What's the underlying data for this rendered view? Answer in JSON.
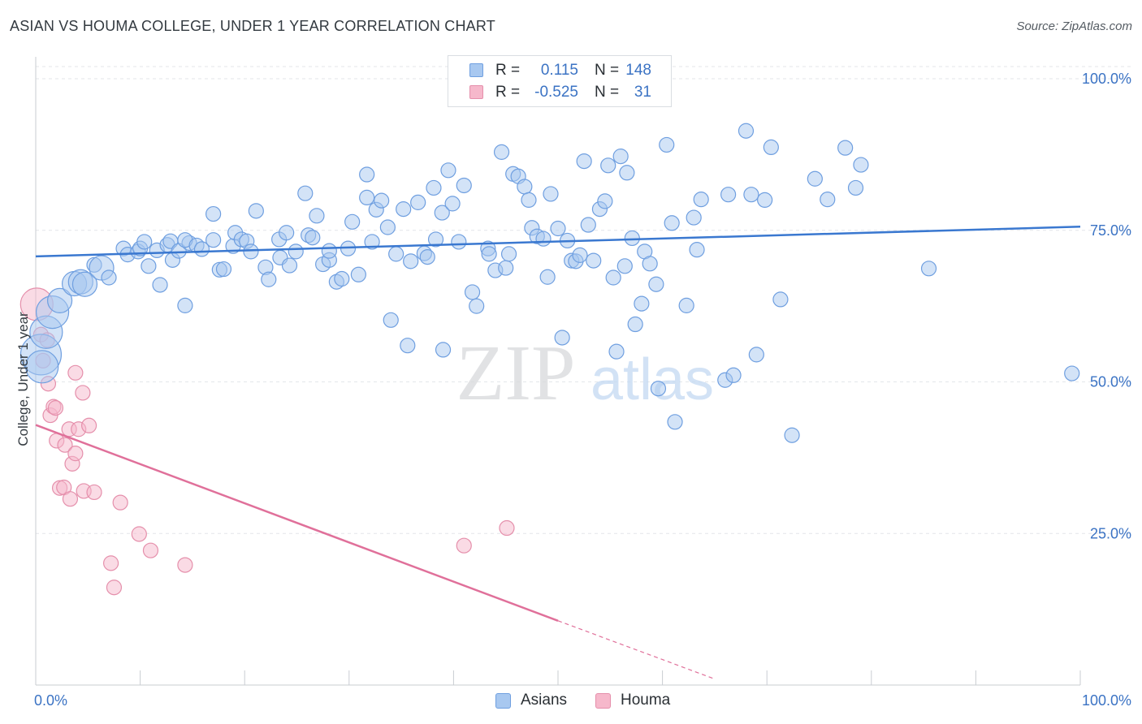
{
  "header": {
    "title": "ASIAN VS HOUMA COLLEGE, UNDER 1 YEAR CORRELATION CHART",
    "source": "Source: ZipAtlas.com"
  },
  "watermark": {
    "zip": "ZIP",
    "atlas": "atlas"
  },
  "legend": {
    "rows": [
      {
        "r_label": "R =",
        "r_value": "0.115",
        "n_label": "N =",
        "n_value": "148",
        "color": "#a8c8f0",
        "stroke": "#6f9fe0"
      },
      {
        "r_label": "R =",
        "r_value": "-0.525",
        "n_label": "N =",
        "n_value": "31",
        "color": "#f6b8cb",
        "stroke": "#e58fab"
      }
    ]
  },
  "bottom_legend": {
    "items": [
      {
        "label": "Asians",
        "color": "#a8c8f0",
        "stroke": "#6f9fe0"
      },
      {
        "label": "Houma",
        "color": "#f6b8cb",
        "stroke": "#e58fab"
      }
    ]
  },
  "chart_data": {
    "type": "scatter",
    "title": "ASIAN VS HOUMA COLLEGE, UNDER 1 YEAR CORRELATION CHART",
    "xlabel": "",
    "ylabel": "College, Under 1 year",
    "xlim": [
      0,
      100
    ],
    "ylim": [
      0,
      102
    ],
    "x_tick_labels": [
      "0.0%",
      "100.0%"
    ],
    "y_ticks": [
      {
        "value": 100,
        "label": "100.0%"
      },
      {
        "value": 75,
        "label": "75.0%"
      },
      {
        "value": 50,
        "label": "50.0%"
      },
      {
        "value": 25,
        "label": "25.0%"
      }
    ],
    "x_minor_ticks": [
      0,
      10,
      20,
      30,
      40,
      50,
      60,
      70,
      80,
      90,
      100
    ],
    "grid": "horizontal dashed",
    "colors": {
      "asians": "#3a78d0",
      "houma": "#e0709a",
      "tick_text": "#3b73c4"
    },
    "series": [
      {
        "name": "Asians",
        "color": "#a8c8f0",
        "stroke": "#6f9fe0",
        "trend": {
          "x": [
            0,
            100
          ],
          "y": [
            70.7,
            75.6
          ]
        },
        "points": [
          [
            0.5,
            54.5,
            4
          ],
          [
            0.6,
            52.5,
            3
          ],
          [
            1.0,
            58.2,
            3
          ],
          [
            1.6,
            61.5,
            3
          ],
          [
            2.3,
            63.4,
            2
          ],
          [
            3.7,
            66.2,
            2
          ],
          [
            4.3,
            66.5,
            2
          ],
          [
            4.7,
            66.1,
            2
          ],
          [
            5.6,
            69.3,
            1
          ],
          [
            6.3,
            68.8,
            2
          ],
          [
            7.0,
            67.2,
            1
          ],
          [
            8.4,
            72.0,
            1
          ],
          [
            8.8,
            71.0,
            1
          ],
          [
            9.8,
            71.5,
            1
          ],
          [
            10.0,
            72.0,
            1
          ],
          [
            10.4,
            73.1,
            1
          ],
          [
            10.8,
            69.1,
            1
          ],
          [
            11.9,
            66.0,
            1
          ],
          [
            11.6,
            71.7,
            1
          ],
          [
            12.6,
            72.6,
            1
          ],
          [
            12.9,
            73.2,
            1
          ],
          [
            13.1,
            70.1,
            1
          ],
          [
            13.7,
            71.6,
            1
          ],
          [
            14.7,
            72.9,
            1
          ],
          [
            14.3,
            73.4,
            1
          ],
          [
            14.3,
            62.6,
            1
          ],
          [
            15.4,
            72.5,
            1
          ],
          [
            15.9,
            71.9,
            1
          ],
          [
            17.0,
            73.4,
            1
          ],
          [
            17.0,
            77.7,
            1
          ],
          [
            17.6,
            68.5,
            1
          ],
          [
            18.0,
            68.6,
            1
          ],
          [
            18.9,
            72.4,
            1
          ],
          [
            19.1,
            74.6,
            1
          ],
          [
            19.7,
            73.5,
            1
          ],
          [
            20.2,
            73.2,
            1
          ],
          [
            20.6,
            71.5,
            1
          ],
          [
            21.1,
            78.2,
            1
          ],
          [
            22.0,
            68.9,
            1
          ],
          [
            22.3,
            66.9,
            1
          ],
          [
            23.3,
            73.5,
            1
          ],
          [
            23.4,
            70.5,
            1
          ],
          [
            24.0,
            74.6,
            1
          ],
          [
            24.3,
            69.2,
            1
          ],
          [
            24.9,
            71.5,
            1
          ],
          [
            25.8,
            81.1,
            1
          ],
          [
            26.1,
            74.2,
            1
          ],
          [
            26.5,
            73.8,
            1
          ],
          [
            26.9,
            77.4,
            1
          ],
          [
            27.5,
            69.4,
            1
          ],
          [
            28.1,
            70.1,
            1
          ],
          [
            28.1,
            71.6,
            1
          ],
          [
            28.8,
            66.5,
            1
          ],
          [
            29.3,
            67.0,
            1
          ],
          [
            29.9,
            72.0,
            1
          ],
          [
            30.3,
            76.4,
            1
          ],
          [
            30.9,
            67.7,
            1
          ],
          [
            31.7,
            84.2,
            1
          ],
          [
            31.7,
            80.4,
            1
          ],
          [
            32.2,
            73.1,
            1
          ],
          [
            32.6,
            78.4,
            1
          ],
          [
            33.1,
            79.9,
            1
          ],
          [
            33.7,
            75.5,
            1
          ],
          [
            34.0,
            60.2,
            1
          ],
          [
            34.5,
            71.1,
            1
          ],
          [
            35.2,
            78.5,
            1
          ],
          [
            35.6,
            56.0,
            1
          ],
          [
            35.9,
            69.9,
            1
          ],
          [
            36.6,
            79.6,
            1
          ],
          [
            37.2,
            71.2,
            1
          ],
          [
            37.5,
            70.6,
            1
          ],
          [
            38.1,
            82.0,
            1
          ],
          [
            38.3,
            73.5,
            1
          ],
          [
            38.9,
            77.9,
            1
          ],
          [
            39.0,
            55.3,
            1
          ],
          [
            39.5,
            84.9,
            1
          ],
          [
            39.9,
            79.4,
            1
          ],
          [
            40.5,
            73.1,
            1
          ],
          [
            41.0,
            82.4,
            1
          ],
          [
            41.8,
            64.8,
            1
          ],
          [
            42.2,
            62.5,
            1
          ],
          [
            43.3,
            72.0,
            1
          ],
          [
            43.4,
            71.1,
            1
          ],
          [
            44.0,
            68.4,
            1
          ],
          [
            44.6,
            87.9,
            1
          ],
          [
            45.0,
            68.8,
            1
          ],
          [
            45.3,
            71.1,
            1
          ],
          [
            45.7,
            84.3,
            1
          ],
          [
            46.2,
            83.9,
            1
          ],
          [
            46.8,
            82.2,
            1
          ],
          [
            47.2,
            80.0,
            1
          ],
          [
            47.5,
            75.4,
            1
          ],
          [
            48.0,
            74.0,
            1
          ],
          [
            48.6,
            73.6,
            1
          ],
          [
            49.0,
            67.3,
            1
          ],
          [
            49.3,
            81.0,
            1
          ],
          [
            50.0,
            75.3,
            1
          ],
          [
            50.4,
            57.3,
            1
          ],
          [
            50.9,
            73.3,
            1
          ],
          [
            51.3,
            70.0,
            1
          ],
          [
            51.7,
            69.9,
            1
          ],
          [
            52.1,
            70.9,
            1
          ],
          [
            52.5,
            86.4,
            1
          ],
          [
            52.9,
            75.9,
            1
          ],
          [
            53.4,
            70.0,
            1
          ],
          [
            54.0,
            78.5,
            1
          ],
          [
            54.5,
            79.8,
            1
          ],
          [
            54.8,
            85.7,
            1
          ],
          [
            55.3,
            67.2,
            1
          ],
          [
            55.6,
            55.0,
            1
          ],
          [
            56.0,
            87.2,
            1
          ],
          [
            56.4,
            69.1,
            1
          ],
          [
            56.6,
            84.5,
            1
          ],
          [
            57.1,
            73.7,
            1
          ],
          [
            57.4,
            59.5,
            1
          ],
          [
            58.0,
            62.9,
            1
          ],
          [
            58.3,
            71.5,
            1
          ],
          [
            58.8,
            69.5,
            1
          ],
          [
            59.4,
            66.1,
            1
          ],
          [
            59.6,
            48.9,
            1
          ],
          [
            60.4,
            89.1,
            1
          ],
          [
            60.9,
            76.2,
            1
          ],
          [
            61.2,
            43.4,
            1
          ],
          [
            62.3,
            62.6,
            1
          ],
          [
            63.0,
            77.1,
            1
          ],
          [
            63.3,
            71.8,
            1
          ],
          [
            63.7,
            80.1,
            1
          ],
          [
            66.0,
            50.3,
            1
          ],
          [
            66.8,
            51.1,
            1
          ],
          [
            66.3,
            80.9,
            1
          ],
          [
            68.0,
            91.4,
            1
          ],
          [
            68.5,
            80.9,
            1
          ],
          [
            69.0,
            54.5,
            1
          ],
          [
            69.8,
            80.0,
            1
          ],
          [
            70.4,
            88.7,
            1
          ],
          [
            71.3,
            63.6,
            1
          ],
          [
            72.4,
            41.2,
            1
          ],
          [
            74.6,
            83.5,
            1
          ],
          [
            75.8,
            80.1,
            1
          ],
          [
            77.5,
            88.6,
            1
          ],
          [
            78.5,
            82.0,
            1
          ],
          [
            79.0,
            85.8,
            1
          ],
          [
            85.5,
            68.7,
            1
          ],
          [
            99.2,
            51.4,
            1
          ]
        ]
      },
      {
        "name": "Houma",
        "color": "#f6b8cb",
        "stroke": "#e58fab",
        "trend": {
          "x": [
            0,
            50
          ],
          "y": [
            42.9,
            10.6
          ],
          "dash_x": [
            50,
            65
          ],
          "dash_y": [
            10.6,
            1.0
          ]
        },
        "points": [
          [
            0.1,
            62.8,
            3
          ],
          [
            0.5,
            57.8,
            1
          ],
          [
            1.1,
            56.9,
            1
          ],
          [
            0.7,
            53.5,
            1
          ],
          [
            1.2,
            49.7,
            1
          ],
          [
            1.4,
            44.5,
            1
          ],
          [
            1.7,
            45.9,
            1
          ],
          [
            1.9,
            45.7,
            1
          ],
          [
            2.0,
            40.3,
            1
          ],
          [
            2.3,
            32.5,
            1
          ],
          [
            2.7,
            32.6,
            1
          ],
          [
            2.8,
            39.6,
            1
          ],
          [
            3.2,
            42.2,
            1
          ],
          [
            3.3,
            30.7,
            1
          ],
          [
            3.5,
            36.5,
            1
          ],
          [
            3.8,
            38.2,
            1
          ],
          [
            4.1,
            42.2,
            1
          ],
          [
            3.8,
            51.5,
            1
          ],
          [
            4.5,
            48.2,
            1
          ],
          [
            4.6,
            32.0,
            1
          ],
          [
            5.1,
            42.8,
            1
          ],
          [
            5.6,
            31.8,
            1
          ],
          [
            7.2,
            20.1,
            1
          ],
          [
            7.5,
            16.1,
            1
          ],
          [
            8.1,
            30.1,
            1
          ],
          [
            9.9,
            24.9,
            1
          ],
          [
            11.0,
            22.2,
            1
          ],
          [
            14.3,
            19.8,
            1
          ],
          [
            41.0,
            23.0,
            1
          ],
          [
            45.1,
            25.9,
            1
          ]
        ]
      }
    ]
  }
}
